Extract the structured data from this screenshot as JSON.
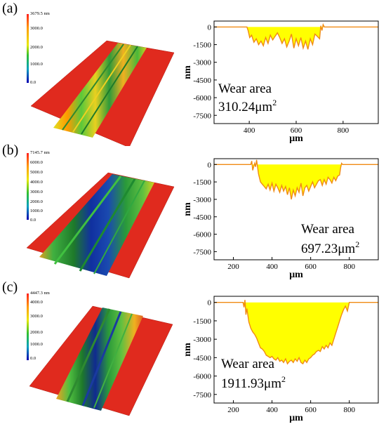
{
  "panels": [
    {
      "letter": "(a)",
      "colorbar": {
        "max_label": "3679.5 nm",
        "labels": [
          "3000.0",
          "2000.0",
          "1000.0",
          "0.0"
        ]
      }
    },
    {
      "letter": "(b)",
      "colorbar": {
        "max_label": "7145.7 nm",
        "labels": [
          "6000.0",
          "5000.0",
          "4000.0",
          "3000.0",
          "2000.0",
          "1000.0",
          "0.0"
        ]
      }
    },
    {
      "letter": "(c)",
      "colorbar": {
        "max_label": "4447.3 nm",
        "labels": [
          "4000.0",
          "3000.0",
          "2000.0",
          "1000.0",
          "0.0"
        ]
      }
    }
  ],
  "chart_data": [
    {
      "type": "area",
      "xlabel": "μm",
      "ylabel": "nm",
      "xlim": [
        250,
        950
      ],
      "ylim": [
        -8200,
        500
      ],
      "xticks": [
        400,
        600,
        800
      ],
      "yticks": [
        0,
        -1500,
        -3000,
        -4500,
        -6000,
        -7500
      ],
      "annotation_line1": "Wear area",
      "annotation_line2": "310.24μm",
      "annotation_sup": "2",
      "colors": {
        "line": "#f08a14",
        "fill": "#ffff00"
      },
      "x": [
        250,
        390,
        395,
        402,
        410,
        420,
        430,
        440,
        450,
        460,
        470,
        480,
        490,
        500,
        510,
        520,
        530,
        540,
        550,
        560,
        570,
        580,
        590,
        600,
        610,
        620,
        630,
        640,
        650,
        660,
        670,
        680,
        690,
        700,
        705,
        710,
        715,
        720,
        950
      ],
      "y": [
        0,
        0,
        -300,
        -900,
        -700,
        -1300,
        -1000,
        -1500,
        -1200,
        -1600,
        -900,
        -1400,
        -700,
        -1100,
        -800,
        -500,
        -900,
        -1400,
        -1000,
        -1700,
        -1200,
        -600,
        -1800,
        -1000,
        -1600,
        -900,
        -1800,
        -1200,
        -1900,
        -1000,
        -1500,
        -600,
        -800,
        -1000,
        100,
        -300,
        200,
        0,
        0
      ]
    },
    {
      "type": "area",
      "xlabel": "μm",
      "ylabel": "nm",
      "xlim": [
        100,
        950
      ],
      "ylim": [
        -8200,
        500
      ],
      "xticks": [
        200,
        400,
        600,
        800
      ],
      "yticks": [
        0,
        -1500,
        -3000,
        -4500,
        -6000,
        -7500
      ],
      "annotation_line1": "Wear area",
      "annotation_line2": "697.23μm",
      "annotation_sup": "2",
      "colors": {
        "line": "#f08a14",
        "fill": "#ffff00"
      },
      "x": [
        100,
        290,
        295,
        300,
        310,
        315,
        320,
        330,
        340,
        350,
        360,
        370,
        380,
        390,
        400,
        410,
        420,
        430,
        440,
        450,
        460,
        470,
        480,
        490,
        500,
        510,
        520,
        530,
        540,
        550,
        560,
        570,
        580,
        590,
        600,
        610,
        620,
        630,
        640,
        650,
        660,
        670,
        680,
        690,
        700,
        710,
        720,
        730,
        740,
        750,
        755,
        760,
        765,
        950
      ],
      "y": [
        0,
        0,
        300,
        -500,
        100,
        -200,
        400,
        -800,
        -1500,
        -1700,
        -1900,
        -2100,
        -1700,
        -2200,
        -1600,
        -2300,
        -1700,
        -2000,
        -2400,
        -1800,
        -2300,
        -1900,
        -2600,
        -2000,
        -3000,
        -2200,
        -2700,
        -2000,
        -2400,
        -1600,
        -2700,
        -2000,
        -1800,
        -2300,
        -1900,
        -1500,
        -2000,
        -1700,
        -1400,
        -1300,
        -1800,
        -1300,
        -1700,
        -1100,
        -1300,
        -1600,
        -1100,
        -1400,
        -1000,
        -900,
        -300,
        100,
        0,
        0
      ]
    },
    {
      "type": "area",
      "xlabel": "μm",
      "ylabel": "nm",
      "xlim": [
        100,
        950
      ],
      "ylim": [
        -8200,
        500
      ],
      "xticks": [
        200,
        400,
        600,
        800
      ],
      "yticks": [
        0,
        -1500,
        -3000,
        -4500,
        -6000,
        -7500
      ],
      "annotation_line1": "Wear area",
      "annotation_line2": "1911.93μm",
      "annotation_sup": "2",
      "colors": {
        "line": "#f08a14",
        "fill": "#ffff00"
      },
      "x": [
        100,
        250,
        255,
        260,
        265,
        270,
        280,
        290,
        300,
        310,
        320,
        330,
        340,
        350,
        360,
        370,
        380,
        390,
        400,
        410,
        420,
        430,
        440,
        450,
        460,
        470,
        480,
        490,
        500,
        510,
        520,
        530,
        540,
        550,
        560,
        570,
        580,
        590,
        600,
        610,
        620,
        630,
        640,
        650,
        660,
        670,
        680,
        690,
        700,
        710,
        720,
        730,
        740,
        750,
        760,
        770,
        780,
        790,
        800,
        810,
        950
      ],
      "y": [
        0,
        0,
        -400,
        200,
        -1000,
        -500,
        -1600,
        -2100,
        -2400,
        -2600,
        -2900,
        -3300,
        -3700,
        -3800,
        -4000,
        -4300,
        -4400,
        -4500,
        -4400,
        -4600,
        -4700,
        -4500,
        -4800,
        -4700,
        -4900,
        -4600,
        -5000,
        -4800,
        -4700,
        -4900,
        -4600,
        -4800,
        -4500,
        -4900,
        -5000,
        -4700,
        -4900,
        -4600,
        -4500,
        -4300,
        -4200,
        -4000,
        -3900,
        -4000,
        -3600,
        -3800,
        -3500,
        -3700,
        -3300,
        -3500,
        -3000,
        -2500,
        -2000,
        -1500,
        -1000,
        -600,
        -300,
        -700,
        0,
        0,
        0
      ]
    }
  ]
}
